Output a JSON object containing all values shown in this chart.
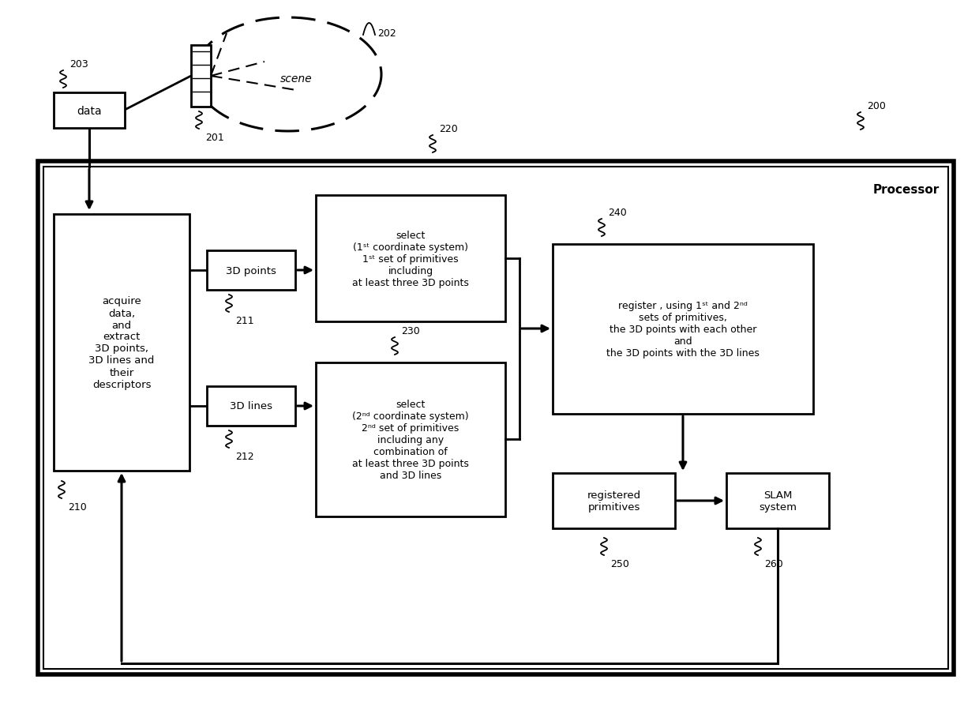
{
  "bg_color": "#ffffff",
  "labels": {
    "processor": "Processor",
    "data": "data",
    "scene": "scene",
    "acquire": "acquire\ndata,\nand\nextract\n3D points,\n3D lines and\ntheir\ndescriptors",
    "points3d": "3D points",
    "lines3d": "3D lines",
    "select1": "select\n(1st coordinate system)\n1st set of primitives\nincluding\nat least three 3D points",
    "select2": "select\n(2nd coordinate system)\n2nd set of primitives\nincluding any\ncombination of\nat least three 3D points\nand 3D lines",
    "register": "register , using 1st and 2nd\nsets of primitives,\nthe 3D points with each other\nand\nthe 3D points with the 3D lines",
    "reg_prim": "registered\nprimitives",
    "slam": "SLAM\nsystem",
    "n200": "200",
    "n201": "201",
    "n202": "202",
    "n203": "203",
    "n210": "210",
    "n211": "211",
    "n212": "212",
    "n220": "220",
    "n230": "230",
    "n240": "240",
    "n250": "250",
    "n260": "260"
  }
}
